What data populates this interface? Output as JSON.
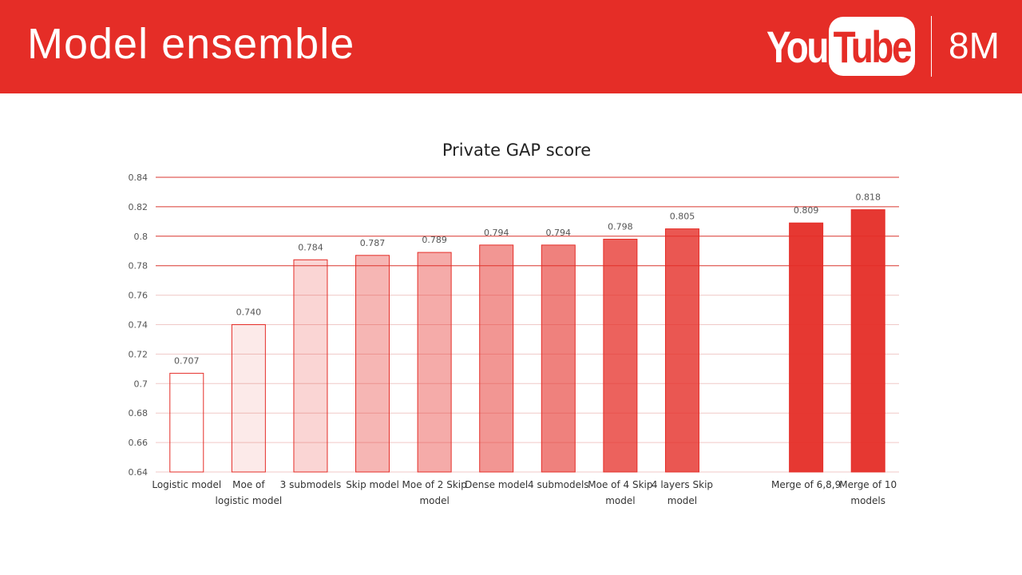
{
  "header": {
    "title": "Model ensemble",
    "logo_text_left": "You",
    "logo_text_right": "Tube",
    "badge": "8M",
    "background_color": "#e52d27"
  },
  "chart_data": {
    "type": "bar",
    "title": "Private GAP score",
    "xlabel": "",
    "ylabel": "",
    "ylim": [
      0.64,
      0.84
    ],
    "yticks": [
      "0.64",
      "0.66",
      "0.68",
      "0.7",
      "0.72",
      "0.74",
      "0.76",
      "0.78",
      "0.8",
      "0.82",
      "0.84"
    ],
    "grid": true,
    "categories": [
      "Logistic model",
      "Moe of logistic model",
      "3 submodels",
      "Skip model",
      "Moe of 2 Skip model",
      "Dense model",
      "4 submodels",
      "Moe of 4 Skip model",
      "4 layers Skip model",
      "",
      "Merge of 6,8,9",
      "Merge of 10 models"
    ],
    "values": [
      0.707,
      0.74,
      0.784,
      0.787,
      0.789,
      0.794,
      0.794,
      0.798,
      0.805,
      null,
      0.809,
      0.818
    ],
    "data_labels": [
      "0.707",
      "0.740",
      "0.784",
      "0.787",
      "0.789",
      "0.794",
      "0.794",
      "0.798",
      "0.805",
      "",
      "0.809",
      "0.818"
    ],
    "bar_fill_opacity": [
      0.0,
      0.1,
      0.2,
      0.35,
      0.4,
      0.5,
      0.6,
      0.75,
      0.8,
      0,
      0.95,
      0.95
    ],
    "bar_color": "#e52d27"
  }
}
